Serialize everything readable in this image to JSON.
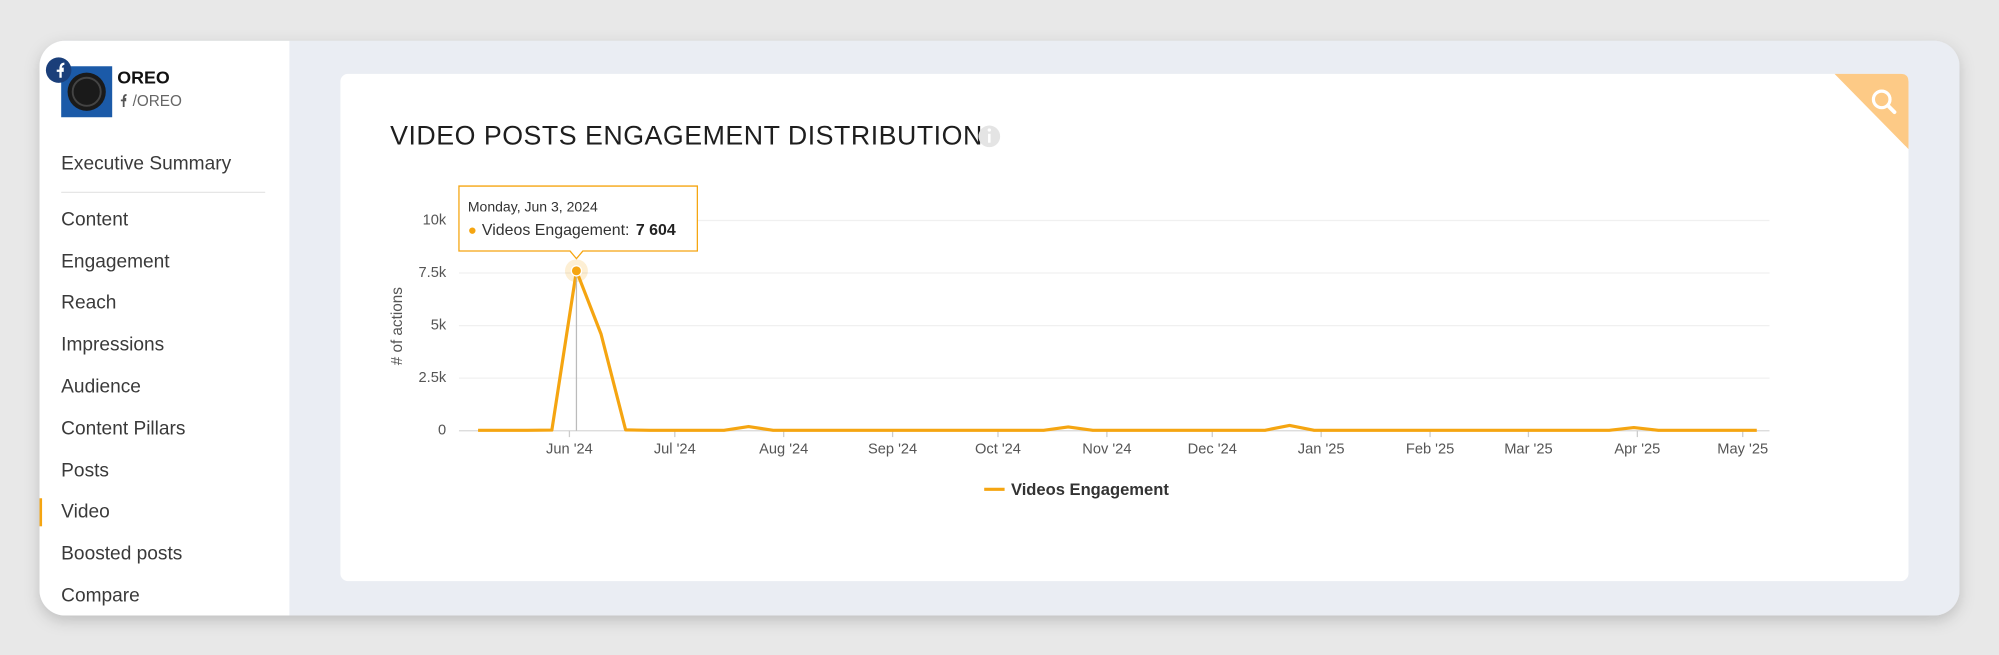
{
  "sidebar": {
    "brand": "OREO",
    "handle": "/OREO",
    "menu": [
      "Executive Summary",
      "Content",
      "Engagement",
      "Reach",
      "Impressions",
      "Audience",
      "Content Pillars",
      "Posts",
      "Video",
      "Boosted posts",
      "Compare"
    ],
    "active": 8
  },
  "chart_data": {
    "type": "line",
    "title": "VIDEO POSTS ENGAGEMENT DISTRIBUTION",
    "y_label": "# of actions",
    "x": [
      "2024-05-06",
      "2024-05-13",
      "2024-05-20",
      "2024-05-27",
      "2024-06-03",
      "2024-06-10",
      "2024-06-17",
      "2024-06-24",
      "2024-07-01",
      "2024-07-08",
      "2024-07-15",
      "2024-07-22",
      "2024-07-29",
      "2024-08-05",
      "2024-08-12",
      "2024-08-19",
      "2024-08-26",
      "2024-09-02",
      "2024-09-09",
      "2024-09-16",
      "2024-09-23",
      "2024-09-30",
      "2024-10-07",
      "2024-10-14",
      "2024-10-21",
      "2024-10-28",
      "2024-11-04",
      "2024-11-11",
      "2024-11-18",
      "2024-11-25",
      "2024-12-02",
      "2024-12-09",
      "2024-12-16",
      "2024-12-23",
      "2024-12-30",
      "2025-01-06",
      "2025-01-13",
      "2025-01-20",
      "2025-01-27",
      "2025-02-03",
      "2025-02-10",
      "2025-02-17",
      "2025-02-24",
      "2025-03-03",
      "2025-03-10",
      "2025-03-17",
      "2025-03-24",
      "2025-03-31",
      "2025-04-07",
      "2025-04-14",
      "2025-04-21",
      "2025-04-28",
      "2025-05-05"
    ],
    "series": [
      {
        "name": "Videos Engagement",
        "color": "#f5a511",
        "values": [
          20,
          20,
          20,
          30,
          7604,
          4600,
          40,
          20,
          20,
          20,
          20,
          200,
          20,
          20,
          20,
          20,
          20,
          20,
          20,
          20,
          20,
          20,
          20,
          20,
          180,
          20,
          20,
          20,
          20,
          20,
          20,
          20,
          20,
          250,
          20,
          20,
          20,
          20,
          20,
          20,
          20,
          20,
          20,
          20,
          20,
          20,
          20,
          150,
          20,
          20,
          20,
          20,
          20
        ],
        "value_labels": [
          null,
          null,
          null,
          null,
          "7 604",
          null,
          null,
          null,
          null,
          null,
          null,
          null,
          null,
          null,
          null,
          null,
          null,
          null,
          null,
          null,
          null,
          null,
          null,
          null,
          null,
          null,
          null,
          null,
          null,
          null,
          null,
          null,
          null,
          null,
          null,
          null,
          null,
          null,
          null,
          null,
          null,
          null,
          null,
          null,
          null,
          null,
          null,
          null,
          null,
          null,
          null,
          null,
          null
        ]
      }
    ],
    "tooltip": {
      "date": "Monday, Jun 3, 2024",
      "label": "Videos Engagement:"
    },
    "xlim": [
      "2024-05-06",
      "2025-05-05"
    ],
    "xticks": [
      {
        "value": "2024-06-01",
        "label": "Jun '24"
      },
      {
        "value": "2024-07-01",
        "label": "Jul '24"
      },
      {
        "value": "2024-08-01",
        "label": "Aug '24"
      },
      {
        "value": "2024-09-01",
        "label": "Sep '24"
      },
      {
        "value": "2024-10-01",
        "label": "Oct '24"
      },
      {
        "value": "2024-11-01",
        "label": "Nov '24"
      },
      {
        "value": "2024-12-01",
        "label": "Dec '24"
      },
      {
        "value": "2025-01-01",
        "label": "Jan '25"
      },
      {
        "value": "2025-02-01",
        "label": "Feb '25"
      },
      {
        "value": "2025-03-01",
        "label": "Mar '25"
      },
      {
        "value": "2025-04-01",
        "label": "Apr '25"
      },
      {
        "value": "2025-05-01",
        "label": "May '25"
      }
    ],
    "ylim": [
      0,
      10000
    ],
    "yticks": [
      0,
      {
        "value": 2500,
        "label": "2.5k"
      },
      {
        "value": 5000,
        "label": "5k"
      },
      {
        "value": 7500,
        "label": "7.5k"
      },
      {
        "value": 10000,
        "label": "10k"
      }
    ],
    "grid": true,
    "legend": "bottom"
  }
}
